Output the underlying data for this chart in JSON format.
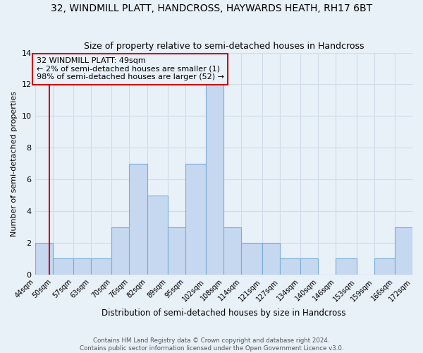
{
  "title": "32, WINDMILL PLATT, HANDCROSS, HAYWARDS HEATH, RH17 6BT",
  "subtitle": "Size of property relative to semi-detached houses in Handcross",
  "xlabel": "Distribution of semi-detached houses by size in Handcross",
  "ylabel": "Number of semi-detached properties",
  "bin_edges": [
    44,
    50,
    57,
    63,
    70,
    76,
    82,
    89,
    95,
    102,
    108,
    114,
    121,
    127,
    134,
    140,
    146,
    153,
    159,
    166,
    172
  ],
  "counts": [
    2,
    1,
    1,
    1,
    3,
    7,
    5,
    3,
    7,
    12,
    3,
    2,
    2,
    1,
    1,
    0,
    1,
    0,
    1,
    3
  ],
  "bar_color": "#c5d8f0",
  "bar_edge_color": "#7aaed6",
  "subject_value": 49,
  "subject_label": "32 WINDMILL PLATT: 49sqm",
  "pct_smaller": 2,
  "pct_larger": 98,
  "n_smaller": 1,
  "n_larger": 52,
  "annotation_box_edge_color": "#cc0000",
  "subject_line_color": "#cc0000",
  "ylim": [
    0,
    14
  ],
  "yticks": [
    0,
    2,
    4,
    6,
    8,
    10,
    12,
    14
  ],
  "grid_color": "#d0dce8",
  "background_color": "#e8f0f8",
  "footer_line1": "Contains HM Land Registry data © Crown copyright and database right 2024.",
  "footer_line2": "Contains public sector information licensed under the Open Government Licence v3.0.",
  "title_fontsize": 10,
  "subtitle_fontsize": 9
}
